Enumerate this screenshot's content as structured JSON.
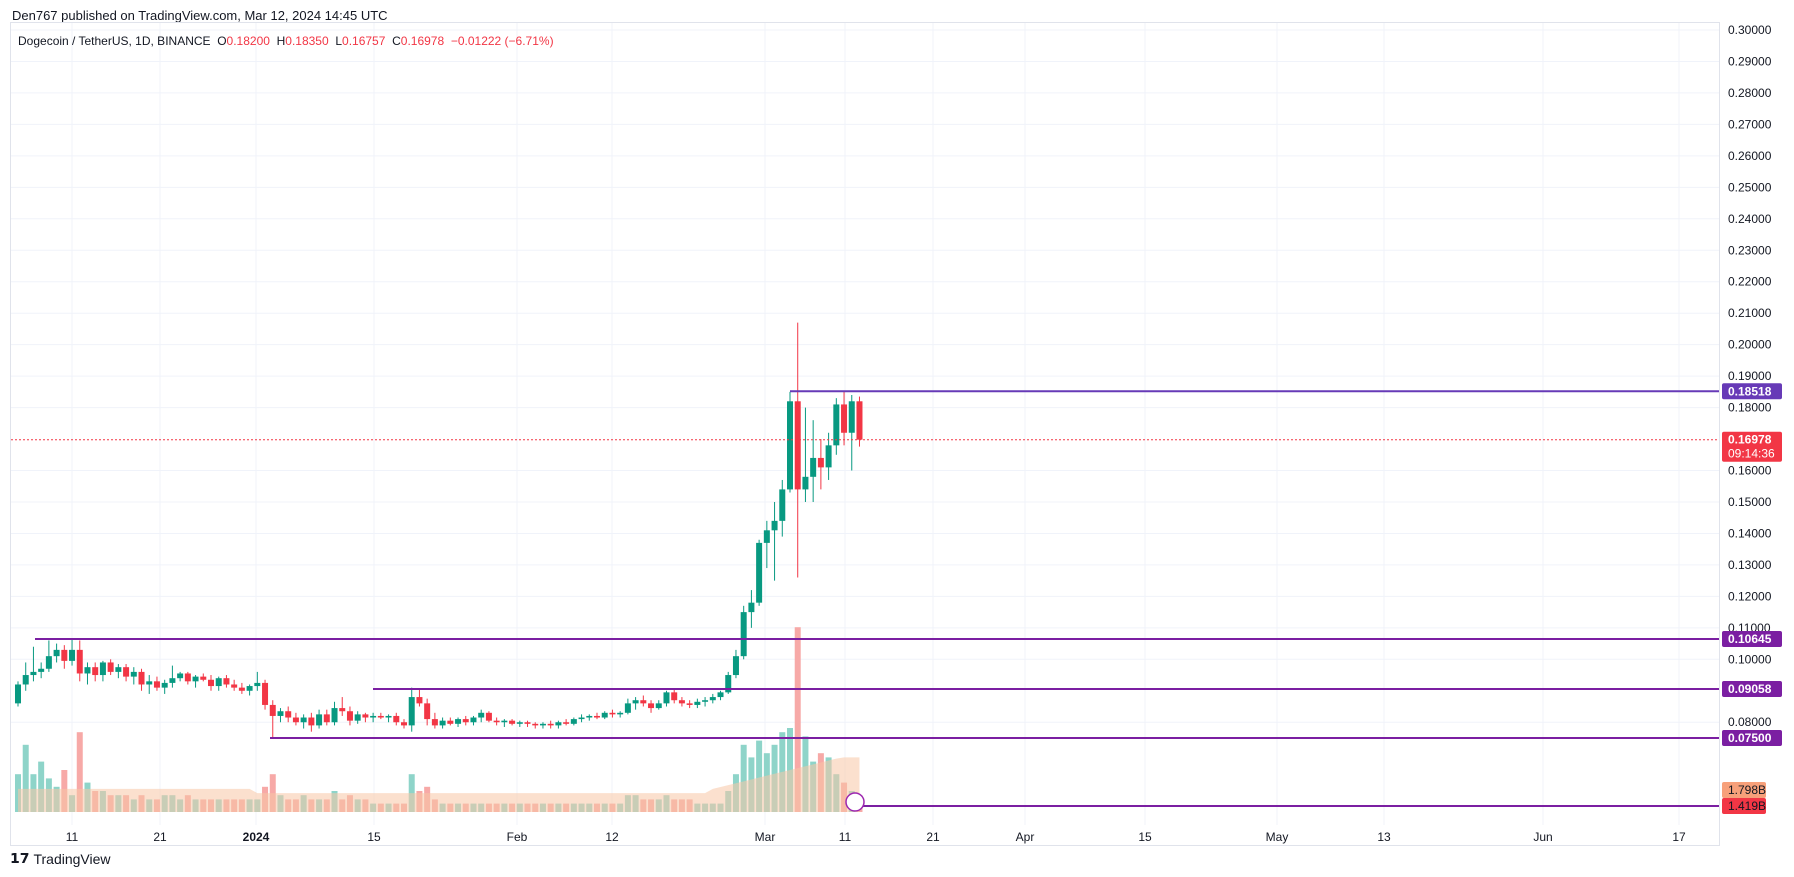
{
  "header": {
    "published": "Den767 published on TradingView.com, Mar 12, 2024 14:45 UTC"
  },
  "legend": {
    "symbol": "Dogecoin / TetherUS, 1D, BINANCE",
    "o_label": "O",
    "o_value": "0.18200",
    "h_label": "H",
    "h_value": "0.18350",
    "l_label": "L",
    "l_value": "0.16757",
    "c_label": "C",
    "c_value": "0.16978",
    "change": "−0.01222 (−6.71%)"
  },
  "footer": {
    "brand": "TradingView"
  },
  "colors": {
    "up": "#089981",
    "down": "#f23645",
    "up_vol": "#8ed4c9",
    "down_vol": "#f7a9a7",
    "level": "#7b1fa2",
    "level_hi": "#673ab7",
    "vol_ma": "#f7c7a5",
    "grid": "#f0f3fa"
  },
  "chart_data": {
    "type": "candlestick",
    "timeframe": "1D",
    "y_axis_ticks": [
      "0.30000",
      "0.29000",
      "0.28000",
      "0.27000",
      "0.26000",
      "0.25000",
      "0.24000",
      "0.23000",
      "0.22000",
      "0.21000",
      "0.20000",
      "0.19000",
      "0.18000",
      "0.16000",
      "0.15000",
      "0.14000",
      "0.13000",
      "0.12000",
      "0.11000",
      "0.10000",
      "0.08000"
    ],
    "x_axis_ticks": [
      "11",
      "21",
      "2024",
      "15",
      "Feb",
      "12",
      "Mar",
      "11",
      "21",
      "Apr",
      "15",
      "May",
      "13",
      "Jun",
      "17"
    ],
    "ylim": [
      0.068,
      0.3
    ],
    "levels": [
      {
        "value": "0.18518",
        "price": 0.18518
      },
      {
        "value": "0.10645",
        "price": 0.10645
      },
      {
        "value": "0.09058",
        "price": 0.09058
      },
      {
        "value": "0.07500",
        "price": 0.075
      }
    ],
    "current_price": {
      "value": "0.16978",
      "price": 0.16978,
      "countdown": "09:14:36"
    },
    "volume_labels": [
      {
        "value": "1.798B",
        "color": "#f7a07a"
      },
      {
        "value": "1.419B",
        "color": "#f23645"
      }
    ],
    "candles": [
      {
        "o": 0.086,
        "h": 0.093,
        "l": 0.085,
        "c": 0.092
      },
      {
        "o": 0.092,
        "h": 0.099,
        "l": 0.09,
        "c": 0.095
      },
      {
        "o": 0.095,
        "h": 0.104,
        "l": 0.093,
        "c": 0.096
      },
      {
        "o": 0.096,
        "h": 0.099,
        "l": 0.094,
        "c": 0.097
      },
      {
        "o": 0.097,
        "h": 0.106,
        "l": 0.096,
        "c": 0.101
      },
      {
        "o": 0.101,
        "h": 0.105,
        "l": 0.099,
        "c": 0.103
      },
      {
        "o": 0.103,
        "h": 0.1045,
        "l": 0.097,
        "c": 0.0995
      },
      {
        "o": 0.0995,
        "h": 0.1065,
        "l": 0.098,
        "c": 0.103
      },
      {
        "o": 0.103,
        "h": 0.106,
        "l": 0.093,
        "c": 0.0955
      },
      {
        "o": 0.0955,
        "h": 0.099,
        "l": 0.092,
        "c": 0.0975
      },
      {
        "o": 0.0975,
        "h": 0.099,
        "l": 0.093,
        "c": 0.095
      },
      {
        "o": 0.095,
        "h": 0.0995,
        "l": 0.093,
        "c": 0.099
      },
      {
        "o": 0.099,
        "h": 0.1,
        "l": 0.095,
        "c": 0.096
      },
      {
        "o": 0.096,
        "h": 0.0985,
        "l": 0.094,
        "c": 0.0975
      },
      {
        "o": 0.0975,
        "h": 0.0985,
        "l": 0.093,
        "c": 0.0945
      },
      {
        "o": 0.0945,
        "h": 0.0975,
        "l": 0.092,
        "c": 0.096
      },
      {
        "o": 0.096,
        "h": 0.097,
        "l": 0.09,
        "c": 0.092
      },
      {
        "o": 0.092,
        "h": 0.095,
        "l": 0.089,
        "c": 0.093
      },
      {
        "o": 0.093,
        "h": 0.0945,
        "l": 0.09,
        "c": 0.091
      },
      {
        "o": 0.091,
        "h": 0.0935,
        "l": 0.089,
        "c": 0.0925
      },
      {
        "o": 0.0925,
        "h": 0.098,
        "l": 0.091,
        "c": 0.094
      },
      {
        "o": 0.094,
        "h": 0.096,
        "l": 0.093,
        "c": 0.0955
      },
      {
        "o": 0.0955,
        "h": 0.096,
        "l": 0.092,
        "c": 0.093
      },
      {
        "o": 0.093,
        "h": 0.095,
        "l": 0.091,
        "c": 0.0945
      },
      {
        "o": 0.0945,
        "h": 0.0955,
        "l": 0.093,
        "c": 0.0935
      },
      {
        "o": 0.0935,
        "h": 0.095,
        "l": 0.09,
        "c": 0.0915
      },
      {
        "o": 0.0915,
        "h": 0.0945,
        "l": 0.09,
        "c": 0.094
      },
      {
        "o": 0.094,
        "h": 0.095,
        "l": 0.091,
        "c": 0.092
      },
      {
        "o": 0.092,
        "h": 0.0935,
        "l": 0.09,
        "c": 0.091
      },
      {
        "o": 0.091,
        "h": 0.0925,
        "l": 0.089,
        "c": 0.09
      },
      {
        "o": 0.09,
        "h": 0.092,
        "l": 0.0885,
        "c": 0.0915
      },
      {
        "o": 0.0915,
        "h": 0.096,
        "l": 0.09,
        "c": 0.0925
      },
      {
        "o": 0.0925,
        "h": 0.0935,
        "l": 0.084,
        "c": 0.0855
      },
      {
        "o": 0.0855,
        "h": 0.087,
        "l": 0.075,
        "c": 0.082
      },
      {
        "o": 0.082,
        "h": 0.0845,
        "l": 0.08,
        "c": 0.0835
      },
      {
        "o": 0.0835,
        "h": 0.085,
        "l": 0.08,
        "c": 0.0815
      },
      {
        "o": 0.0815,
        "h": 0.083,
        "l": 0.079,
        "c": 0.08
      },
      {
        "o": 0.08,
        "h": 0.0825,
        "l": 0.078,
        "c": 0.0815
      },
      {
        "o": 0.0815,
        "h": 0.083,
        "l": 0.077,
        "c": 0.079
      },
      {
        "o": 0.079,
        "h": 0.084,
        "l": 0.078,
        "c": 0.0825
      },
      {
        "o": 0.0825,
        "h": 0.084,
        "l": 0.079,
        "c": 0.08
      },
      {
        "o": 0.08,
        "h": 0.0865,
        "l": 0.079,
        "c": 0.0845
      },
      {
        "o": 0.0845,
        "h": 0.088,
        "l": 0.082,
        "c": 0.0835
      },
      {
        "o": 0.0835,
        "h": 0.085,
        "l": 0.079,
        "c": 0.0805
      },
      {
        "o": 0.0805,
        "h": 0.0835,
        "l": 0.0795,
        "c": 0.0825
      },
      {
        "o": 0.0825,
        "h": 0.083,
        "l": 0.08,
        "c": 0.0815
      },
      {
        "o": 0.0815,
        "h": 0.083,
        "l": 0.08,
        "c": 0.082
      },
      {
        "o": 0.082,
        "h": 0.083,
        "l": 0.081,
        "c": 0.0815
      },
      {
        "o": 0.0815,
        "h": 0.0825,
        "l": 0.08,
        "c": 0.082
      },
      {
        "o": 0.082,
        "h": 0.083,
        "l": 0.079,
        "c": 0.08
      },
      {
        "o": 0.08,
        "h": 0.081,
        "l": 0.078,
        "c": 0.079
      },
      {
        "o": 0.079,
        "h": 0.091,
        "l": 0.077,
        "c": 0.088
      },
      {
        "o": 0.088,
        "h": 0.0905,
        "l": 0.085,
        "c": 0.086
      },
      {
        "o": 0.086,
        "h": 0.0875,
        "l": 0.079,
        "c": 0.081
      },
      {
        "o": 0.081,
        "h": 0.083,
        "l": 0.078,
        "c": 0.079
      },
      {
        "o": 0.079,
        "h": 0.0815,
        "l": 0.078,
        "c": 0.0805
      },
      {
        "o": 0.0805,
        "h": 0.0815,
        "l": 0.079,
        "c": 0.0795
      },
      {
        "o": 0.0795,
        "h": 0.0815,
        "l": 0.0785,
        "c": 0.081
      },
      {
        "o": 0.081,
        "h": 0.082,
        "l": 0.079,
        "c": 0.08
      },
      {
        "o": 0.08,
        "h": 0.082,
        "l": 0.079,
        "c": 0.0815
      },
      {
        "o": 0.0815,
        "h": 0.084,
        "l": 0.08,
        "c": 0.083
      },
      {
        "o": 0.083,
        "h": 0.0835,
        "l": 0.08,
        "c": 0.0805
      },
      {
        "o": 0.0805,
        "h": 0.0815,
        "l": 0.079,
        "c": 0.08
      },
      {
        "o": 0.08,
        "h": 0.081,
        "l": 0.0785,
        "c": 0.0805
      },
      {
        "o": 0.0805,
        "h": 0.081,
        "l": 0.079,
        "c": 0.0795
      },
      {
        "o": 0.0795,
        "h": 0.0805,
        "l": 0.0785,
        "c": 0.08
      },
      {
        "o": 0.08,
        "h": 0.0805,
        "l": 0.0785,
        "c": 0.0795
      },
      {
        "o": 0.0795,
        "h": 0.08,
        "l": 0.078,
        "c": 0.079
      },
      {
        "o": 0.079,
        "h": 0.08,
        "l": 0.078,
        "c": 0.0795
      },
      {
        "o": 0.0795,
        "h": 0.0805,
        "l": 0.078,
        "c": 0.079
      },
      {
        "o": 0.079,
        "h": 0.0805,
        "l": 0.078,
        "c": 0.08
      },
      {
        "o": 0.08,
        "h": 0.081,
        "l": 0.079,
        "c": 0.0795
      },
      {
        "o": 0.0795,
        "h": 0.0815,
        "l": 0.079,
        "c": 0.081
      },
      {
        "o": 0.081,
        "h": 0.0825,
        "l": 0.08,
        "c": 0.0815
      },
      {
        "o": 0.0815,
        "h": 0.0825,
        "l": 0.0805,
        "c": 0.082
      },
      {
        "o": 0.082,
        "h": 0.083,
        "l": 0.081,
        "c": 0.0815
      },
      {
        "o": 0.0815,
        "h": 0.0835,
        "l": 0.081,
        "c": 0.083
      },
      {
        "o": 0.083,
        "h": 0.084,
        "l": 0.0815,
        "c": 0.0825
      },
      {
        "o": 0.0825,
        "h": 0.0835,
        "l": 0.0815,
        "c": 0.083
      },
      {
        "o": 0.083,
        "h": 0.0875,
        "l": 0.0825,
        "c": 0.086
      },
      {
        "o": 0.086,
        "h": 0.088,
        "l": 0.084,
        "c": 0.087
      },
      {
        "o": 0.087,
        "h": 0.0885,
        "l": 0.085,
        "c": 0.086
      },
      {
        "o": 0.086,
        "h": 0.087,
        "l": 0.083,
        "c": 0.0845
      },
      {
        "o": 0.0845,
        "h": 0.087,
        "l": 0.084,
        "c": 0.086
      },
      {
        "o": 0.086,
        "h": 0.09,
        "l": 0.085,
        "c": 0.0895
      },
      {
        "o": 0.0895,
        "h": 0.0905,
        "l": 0.086,
        "c": 0.087
      },
      {
        "o": 0.087,
        "h": 0.088,
        "l": 0.085,
        "c": 0.086
      },
      {
        "o": 0.086,
        "h": 0.087,
        "l": 0.0845,
        "c": 0.0855
      },
      {
        "o": 0.0855,
        "h": 0.0875,
        "l": 0.0845,
        "c": 0.0865
      },
      {
        "o": 0.0865,
        "h": 0.088,
        "l": 0.085,
        "c": 0.087
      },
      {
        "o": 0.087,
        "h": 0.089,
        "l": 0.086,
        "c": 0.088
      },
      {
        "o": 0.088,
        "h": 0.09,
        "l": 0.087,
        "c": 0.0895
      },
      {
        "o": 0.0895,
        "h": 0.096,
        "l": 0.089,
        "c": 0.095
      },
      {
        "o": 0.095,
        "h": 0.103,
        "l": 0.094,
        "c": 0.101
      },
      {
        "o": 0.101,
        "h": 0.117,
        "l": 0.1,
        "c": 0.115
      },
      {
        "o": 0.115,
        "h": 0.122,
        "l": 0.11,
        "c": 0.118
      },
      {
        "o": 0.118,
        "h": 0.138,
        "l": 0.117,
        "c": 0.137
      },
      {
        "o": 0.137,
        "h": 0.144,
        "l": 0.129,
        "c": 0.141
      },
      {
        "o": 0.141,
        "h": 0.15,
        "l": 0.125,
        "c": 0.144
      },
      {
        "o": 0.144,
        "h": 0.157,
        "l": 0.139,
        "c": 0.154
      },
      {
        "o": 0.154,
        "h": 0.185,
        "l": 0.153,
        "c": 0.182
      },
      {
        "o": 0.182,
        "h": 0.207,
        "l": 0.126,
        "c": 0.154
      },
      {
        "o": 0.154,
        "h": 0.18,
        "l": 0.15,
        "c": 0.158
      },
      {
        "o": 0.158,
        "h": 0.176,
        "l": 0.15,
        "c": 0.164
      },
      {
        "o": 0.164,
        "h": 0.17,
        "l": 0.154,
        "c": 0.161
      },
      {
        "o": 0.161,
        "h": 0.172,
        "l": 0.157,
        "c": 0.168
      },
      {
        "o": 0.168,
        "h": 0.183,
        "l": 0.165,
        "c": 0.181
      },
      {
        "o": 0.181,
        "h": 0.185,
        "l": 0.168,
        "c": 0.172
      },
      {
        "o": 0.172,
        "h": 0.184,
        "l": 0.16,
        "c": 0.182
      },
      {
        "o": 0.182,
        "h": 0.1835,
        "l": 0.1676,
        "c": 0.1698
      }
    ],
    "volume": [
      0.9,
      1.6,
      0.9,
      1.2,
      0.8,
      0.6,
      1.0,
      0.4,
      1.9,
      0.7,
      0.5,
      0.5,
      0.4,
      0.4,
      0.4,
      0.3,
      0.4,
      0.3,
      0.3,
      0.4,
      0.4,
      0.3,
      0.4,
      0.3,
      0.3,
      0.3,
      0.3,
      0.3,
      0.3,
      0.3,
      0.3,
      0.3,
      0.6,
      0.9,
      0.4,
      0.3,
      0.3,
      0.4,
      0.3,
      0.3,
      0.3,
      0.5,
      0.3,
      0.4,
      0.3,
      0.3,
      0.2,
      0.2,
      0.2,
      0.2,
      0.2,
      0.9,
      0.5,
      0.6,
      0.3,
      0.2,
      0.2,
      0.2,
      0.2,
      0.2,
      0.2,
      0.2,
      0.2,
      0.2,
      0.2,
      0.2,
      0.2,
      0.2,
      0.2,
      0.2,
      0.2,
      0.2,
      0.2,
      0.2,
      0.2,
      0.2,
      0.2,
      0.2,
      0.2,
      0.4,
      0.4,
      0.3,
      0.3,
      0.3,
      0.4,
      0.3,
      0.3,
      0.3,
      0.2,
      0.2,
      0.2,
      0.2,
      0.5,
      0.9,
      1.6,
      1.3,
      1.7,
      1.4,
      1.6,
      1.9,
      2.0,
      4.4,
      1.8,
      1.2,
      1.4,
      1.3,
      0.9,
      0.7,
      0.5,
      0.4
    ]
  }
}
